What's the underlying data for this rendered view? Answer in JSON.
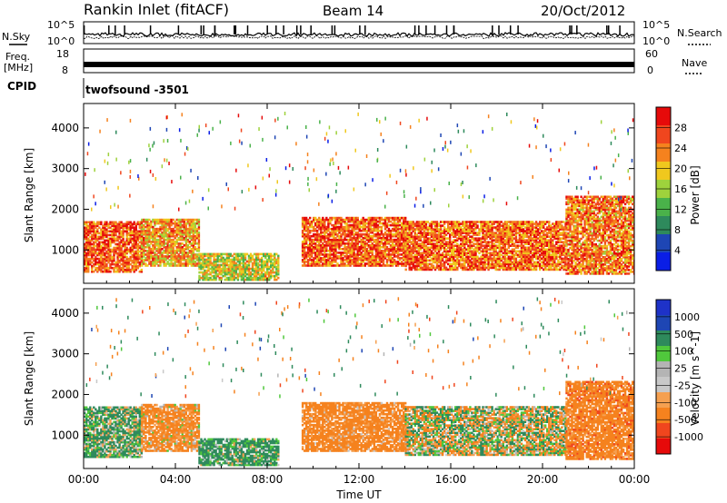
{
  "header": {
    "station": "Rankin Inlet (fitACF)",
    "beam": "Beam 14",
    "date": "20/Oct/2012"
  },
  "summary": {
    "nsky_label": "N.Sky",
    "nsearch_label": "N.Search",
    "freq_label_line1": "Freq.",
    "freq_label_line2": "[MHz]",
    "nave_label": "Nave",
    "cpid_label": "CPID",
    "cpid_value": "twofsound -3501",
    "noise_ticks": [
      "10^5",
      "10^0"
    ],
    "freq_ticks": [
      "18",
      "8"
    ],
    "nave_ticks": [
      "60",
      "0"
    ]
  },
  "colors": {
    "power_scale": [
      "#0a1ee6",
      "#1e46b4",
      "#2e8a5c",
      "#4ab24a",
      "#9ed23c",
      "#f0c81e",
      "#f5821e",
      "#f0461e",
      "#e60a0a"
    ],
    "velocity_scale": [
      "#e60a0a",
      "#f0461e",
      "#f5821e",
      "#f5a050",
      "#c8c8c8",
      "#b4b4b4",
      "#50c83c",
      "#2e8a5c",
      "#1e46b4",
      "#1e32c8"
    ]
  },
  "chart_data": [
    {
      "type": "heatmap",
      "name": "power",
      "xlabel": "",
      "ylabel": "Slant Range [km]",
      "xlim_hours": [
        0,
        24
      ],
      "ylim": [
        180,
        4600
      ],
      "x_ticks": [
        "00:00",
        "04:00",
        "08:00",
        "12:00",
        "16:00",
        "20:00",
        "00:00"
      ],
      "y_ticks": [
        1000,
        2000,
        3000,
        4000
      ],
      "colorbar": {
        "label": "Power [dB]",
        "ticks": [
          "4",
          "8",
          "12",
          "16",
          "20",
          "24",
          "28"
        ],
        "min": 0,
        "max": 32
      },
      "regions": [
        {
          "t0": 0.0,
          "t1": 2.5,
          "r0": 450,
          "r1": 1700,
          "level": 26
        },
        {
          "t0": 2.5,
          "t1": 5.0,
          "r0": 600,
          "r1": 1750,
          "level": 22
        },
        {
          "t0": 5.0,
          "t1": 8.5,
          "r0": 250,
          "r1": 900,
          "level": 18
        },
        {
          "t0": 9.5,
          "t1": 14.0,
          "r0": 600,
          "r1": 1800,
          "level": 26
        },
        {
          "t0": 14.0,
          "t1": 21.0,
          "r0": 500,
          "r1": 1700,
          "level": 25
        },
        {
          "t0": 21.0,
          "t1": 24.0,
          "r0": 400,
          "r1": 2300,
          "level": 24
        }
      ]
    },
    {
      "type": "heatmap",
      "name": "velocity",
      "xlabel": "Time UT",
      "ylabel": "Slant Range [km]",
      "xlim_hours": [
        0,
        24
      ],
      "ylim": [
        180,
        4600
      ],
      "x_ticks": [
        "00:00",
        "04:00",
        "08:00",
        "12:00",
        "16:00",
        "20:00",
        "00:00"
      ],
      "y_ticks": [
        1000,
        2000,
        3000,
        4000
      ],
      "colorbar": {
        "label": "Velocity [m s^-1]",
        "ticks": [
          "1000",
          "500",
          "100",
          "25",
          "-25",
          "-100",
          "-500",
          "-1000"
        ]
      },
      "regions": [
        {
          "t0": 0.0,
          "t1": 2.5,
          "r0": 450,
          "r1": 1700,
          "value": 150
        },
        {
          "t0": 2.5,
          "t1": 5.0,
          "r0": 600,
          "r1": 1750,
          "value": -200
        },
        {
          "t0": 5.0,
          "t1": 8.5,
          "r0": 250,
          "r1": 900,
          "value": 200
        },
        {
          "t0": 9.5,
          "t1": 14.0,
          "r0": 600,
          "r1": 1800,
          "value": -250
        },
        {
          "t0": 14.0,
          "t1": 21.0,
          "r0": 500,
          "r1": 1700,
          "value": 0
        },
        {
          "t0": 21.0,
          "t1": 24.0,
          "r0": 400,
          "r1": 2300,
          "value": -300
        }
      ]
    }
  ]
}
